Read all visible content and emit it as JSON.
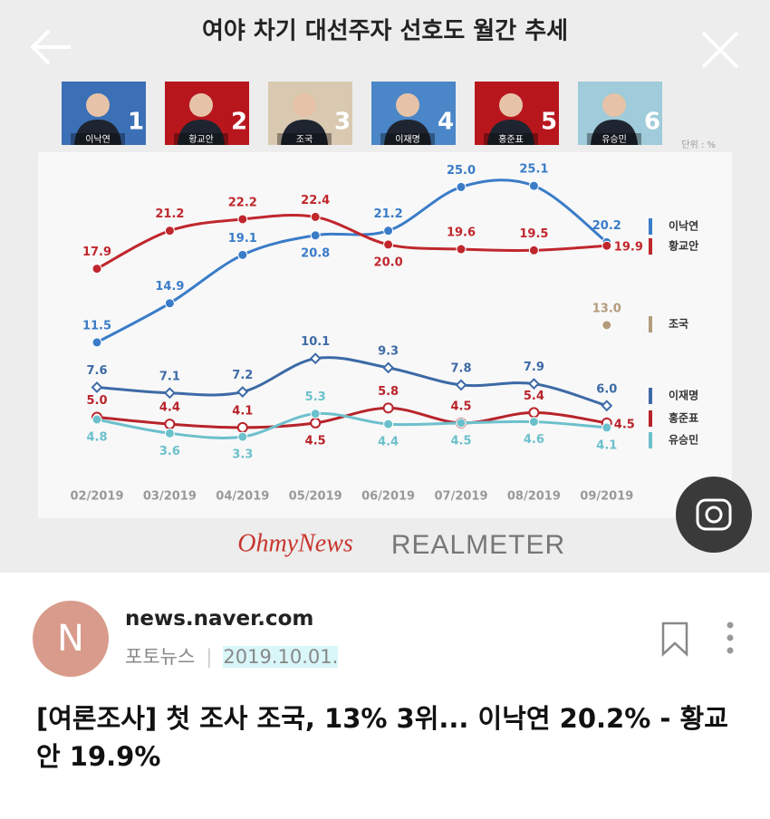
{
  "chart_data": {
    "type": "line",
    "title": "여야 차기 대선주자 선호도 월간 추세",
    "unit": "단위 : %",
    "categories": [
      "02/2019",
      "03/2019",
      "04/2019",
      "05/2019",
      "06/2019",
      "07/2019",
      "08/2019",
      "09/2019"
    ],
    "ylim": [
      0,
      27
    ],
    "series": [
      {
        "name": "이낙연",
        "color": "#3a7cc8",
        "values": [
          11.5,
          14.9,
          19.1,
          20.8,
          21.2,
          25.0,
          25.1,
          20.2
        ],
        "value_labels": [
          "11.5",
          "14.9",
          "19.1",
          "20.8",
          "21.2",
          "25.0",
          "25.1",
          "20.2"
        ]
      },
      {
        "name": "황교안",
        "color": "#c0272d",
        "values": [
          17.9,
          21.2,
          22.2,
          22.4,
          20.0,
          19.6,
          19.5,
          19.9
        ],
        "value_labels": [
          "17.9",
          "21.2",
          "22.2",
          "22.4",
          "20.0",
          "19.6",
          "19.5",
          "19.9"
        ]
      },
      {
        "name": "조국",
        "color": "#b39b7c",
        "values": [
          null,
          null,
          null,
          null,
          null,
          null,
          null,
          13.0
        ],
        "value_labels": [
          null,
          null,
          null,
          null,
          null,
          null,
          null,
          "13.0"
        ]
      },
      {
        "name": "이재명",
        "color": "#3d6aa6",
        "values": [
          7.6,
          7.1,
          7.2,
          10.1,
          9.3,
          7.8,
          7.9,
          6.0
        ],
        "value_labels": [
          "7.6",
          "7.1",
          "7.2",
          "10.1",
          "9.3",
          "7.8",
          "7.9",
          "6.0"
        ]
      },
      {
        "name": "홍준표",
        "color": "#b8232a",
        "values": [
          5.0,
          4.4,
          4.1,
          4.5,
          5.8,
          4.5,
          5.4,
          4.5
        ],
        "value_labels": [
          "5.0",
          "4.4",
          "4.1",
          "4.5",
          "5.8",
          "4.5",
          "5.4",
          "4.5"
        ]
      },
      {
        "name": "유승민",
        "color": "#6cc0cc",
        "values": [
          4.8,
          3.6,
          3.3,
          5.3,
          4.4,
          4.5,
          4.6,
          4.1
        ],
        "value_labels": [
          "4.8",
          "3.6",
          "3.3",
          "5.3",
          "4.4",
          "4.5",
          "4.6",
          "4.1"
        ]
      }
    ]
  },
  "candidates": [
    {
      "name": "이낙연",
      "rank": 1
    },
    {
      "name": "황교안",
      "rank": 2
    },
    {
      "name": "조국",
      "rank": 3
    },
    {
      "name": "이재명",
      "rank": 4
    },
    {
      "name": "홍준표",
      "rank": 5
    },
    {
      "name": "유승민",
      "rank": 6
    }
  ],
  "logos": [
    "OhmyNews",
    "REALMETER"
  ],
  "article": {
    "avatar": "N",
    "source": "news.naver.com",
    "category": "포토뉴스",
    "date": "2019.10.01.",
    "headline": "[여론조사] 첫 조사 조국, 13% 3위... 이낙연 20.2% - 황교안 19.9%"
  }
}
